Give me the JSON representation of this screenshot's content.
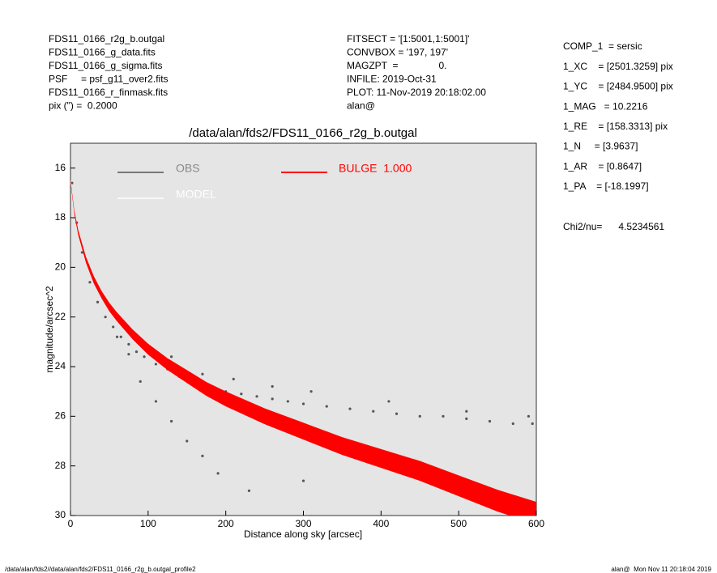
{
  "chart_data": {
    "type": "scatter",
    "title": "/data/alan/fds2/FDS11_0166_r2g_b.outgal",
    "xlabel": "Distance along sky [arcsec]",
    "ylabel": "magnitude/arcsec^2",
    "header_left": [
      "FDS11_0166_r2g_b.outgal",
      "FDS11_0166_g_data.fits",
      "FDS11_0166_g_sigma.fits",
      "PSF     = psf_g11_over2.fits",
      "FDS11_0166_r_finmask.fits",
      "pix (\") =  0.2000"
    ],
    "header_mid": [
      "FITSECT = '[1:5001,1:5001]'",
      "CONVBOX = '197, 197'",
      "MAGZPT  =               0.",
      "INFILE: 2019-Oct-31",
      "PLOT: 11-Nov-2019 20:18:02.00",
      "alan@"
    ],
    "header_right": [
      "COMP_1  = sersic",
      "1_XC    = [2501.3259] pix",
      "1_YC    = [2484.9500] pix",
      "1_MAG   = 10.2216",
      "1_RE    = [158.3313] pix",
      "1_N     = [3.9637]",
      "1_AR    = [0.8647]",
      "1_PA    = [-18.1997]"
    ],
    "chi2": "Chi2/nu=      4.5234561",
    "footer_left": "/data/alan/fds2//data/alan/fds2/FDS11_0166_r2g_b.outgal_profile2",
    "footer_right": "alan@  Mon Nov 11 20:18:04 2019",
    "xlim": [
      0,
      600
    ],
    "xticks": [
      0,
      100,
      200,
      300,
      400,
      500,
      600
    ],
    "ylim": [
      15,
      30
    ],
    "y_inverted": true,
    "yticks": [
      16,
      18,
      20,
      22,
      24,
      26,
      28,
      30
    ],
    "background": "#e5e5e5",
    "series": [
      {
        "name": "OBS",
        "color": "#555555",
        "x": [
          2,
          8,
          15,
          25,
          35,
          45,
          55,
          65,
          75,
          85,
          95,
          110,
          125,
          140,
          160,
          180,
          200,
          220,
          240,
          260,
          280,
          300,
          330,
          360,
          390,
          420,
          450,
          480,
          510,
          540,
          570,
          595,
          130,
          170,
          210,
          260,
          310,
          410,
          510,
          590,
          60,
          75,
          90,
          110,
          130,
          150,
          170,
          190,
          230,
          300
        ],
        "values": [
          16.6,
          18.2,
          19.4,
          20.6,
          21.4,
          22.0,
          22.4,
          22.8,
          23.1,
          23.4,
          23.6,
          23.9,
          24.1,
          24.4,
          24.6,
          24.8,
          25.0,
          25.1,
          25.2,
          25.3,
          25.4,
          25.5,
          25.6,
          25.7,
          25.8,
          25.9,
          26.0,
          26.0,
          26.1,
          26.2,
          26.3,
          26.3,
          23.6,
          24.3,
          24.5,
          24.8,
          25.0,
          25.4,
          25.8,
          26.0,
          22.8,
          23.5,
          24.6,
          25.4,
          26.2,
          27.0,
          27.6,
          28.3,
          29.0,
          28.6
        ]
      },
      {
        "name": "MODEL",
        "color": "#ffffff",
        "x": [
          0,
          5,
          10,
          20,
          30,
          40,
          50,
          60,
          80,
          100,
          125,
          150,
          175,
          200,
          250,
          300,
          350,
          400,
          450,
          500,
          550,
          600
        ],
        "values": [
          16.5,
          17.8,
          18.6,
          19.7,
          20.5,
          21.1,
          21.6,
          22.0,
          22.7,
          23.3,
          23.9,
          24.4,
          24.9,
          25.3,
          26.0,
          26.6,
          27.2,
          27.7,
          28.2,
          28.8,
          29.4,
          29.9
        ]
      },
      {
        "name": "BULGE  1.000",
        "color": "#ff0000",
        "x": [
          0,
          5,
          10,
          20,
          30,
          40,
          50,
          60,
          80,
          100,
          125,
          150,
          175,
          200,
          250,
          300,
          350,
          400,
          450,
          500,
          550,
          600
        ],
        "low": [
          16.45,
          17.72,
          18.5,
          19.58,
          20.35,
          20.95,
          21.43,
          21.82,
          22.5,
          23.08,
          23.66,
          24.14,
          24.62,
          25.0,
          25.68,
          26.26,
          26.84,
          27.32,
          27.8,
          28.38,
          28.96,
          29.45
        ],
        "high": [
          16.55,
          17.88,
          18.7,
          19.82,
          20.65,
          21.25,
          21.77,
          22.18,
          22.9,
          23.52,
          24.14,
          24.66,
          25.18,
          25.6,
          26.32,
          26.94,
          27.56,
          28.08,
          28.6,
          29.22,
          29.84,
          30.35
        ]
      }
    ]
  }
}
